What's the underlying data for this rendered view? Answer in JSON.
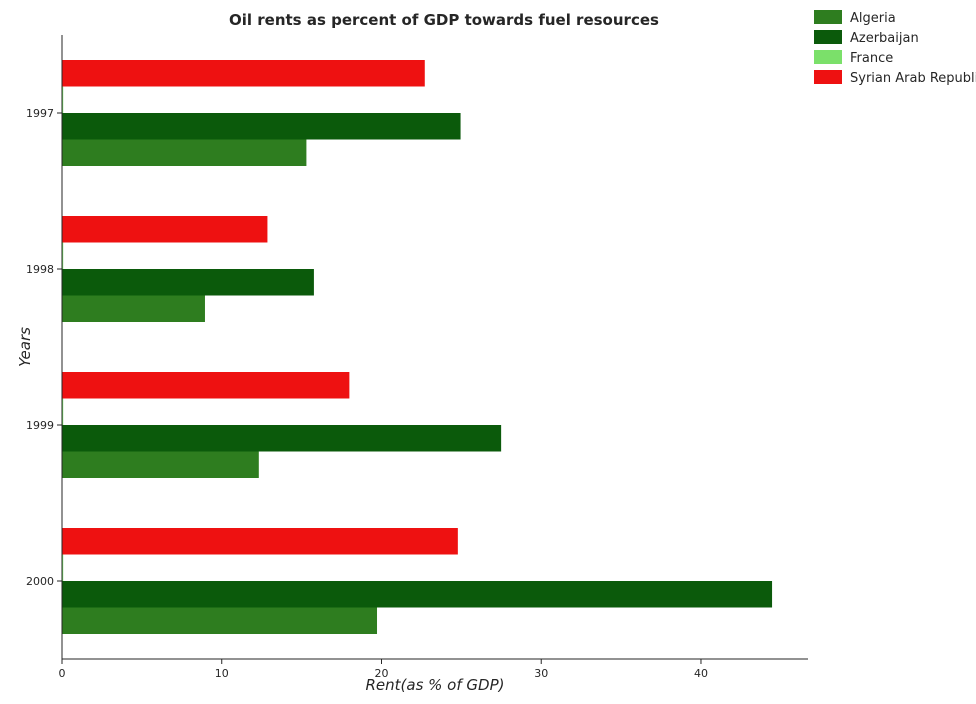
{
  "chart_data": {
    "type": "bar",
    "orientation": "horizontal",
    "title": "Oil rents as percent of GDP towards fuel resources",
    "xlabel": "Rent(as % of GDP)",
    "ylabel": "Years",
    "categories": [
      "1997",
      "1998",
      "1999",
      "2000"
    ],
    "xlim": [
      0,
      46.7
    ],
    "xticks": [
      0,
      10,
      20,
      30,
      40
    ],
    "grid": false,
    "legend_position": "top-right",
    "series": [
      {
        "name": "Algeria",
        "color": "#2e7d1f",
        "values": [
          15.3,
          8.95,
          12.32,
          19.72
        ]
      },
      {
        "name": "Azerbaijan",
        "color": "#0b5a0b",
        "values": [
          24.95,
          15.77,
          27.49,
          44.45
        ]
      },
      {
        "name": "France",
        "color": "#7be06a",
        "values": [
          0.012,
          0.006,
          0.009,
          0.018
        ]
      },
      {
        "name": "Syrian Arab Republic",
        "color": "#ee1111",
        "values": [
          22.71,
          12.86,
          17.99,
          24.78
        ]
      }
    ]
  }
}
